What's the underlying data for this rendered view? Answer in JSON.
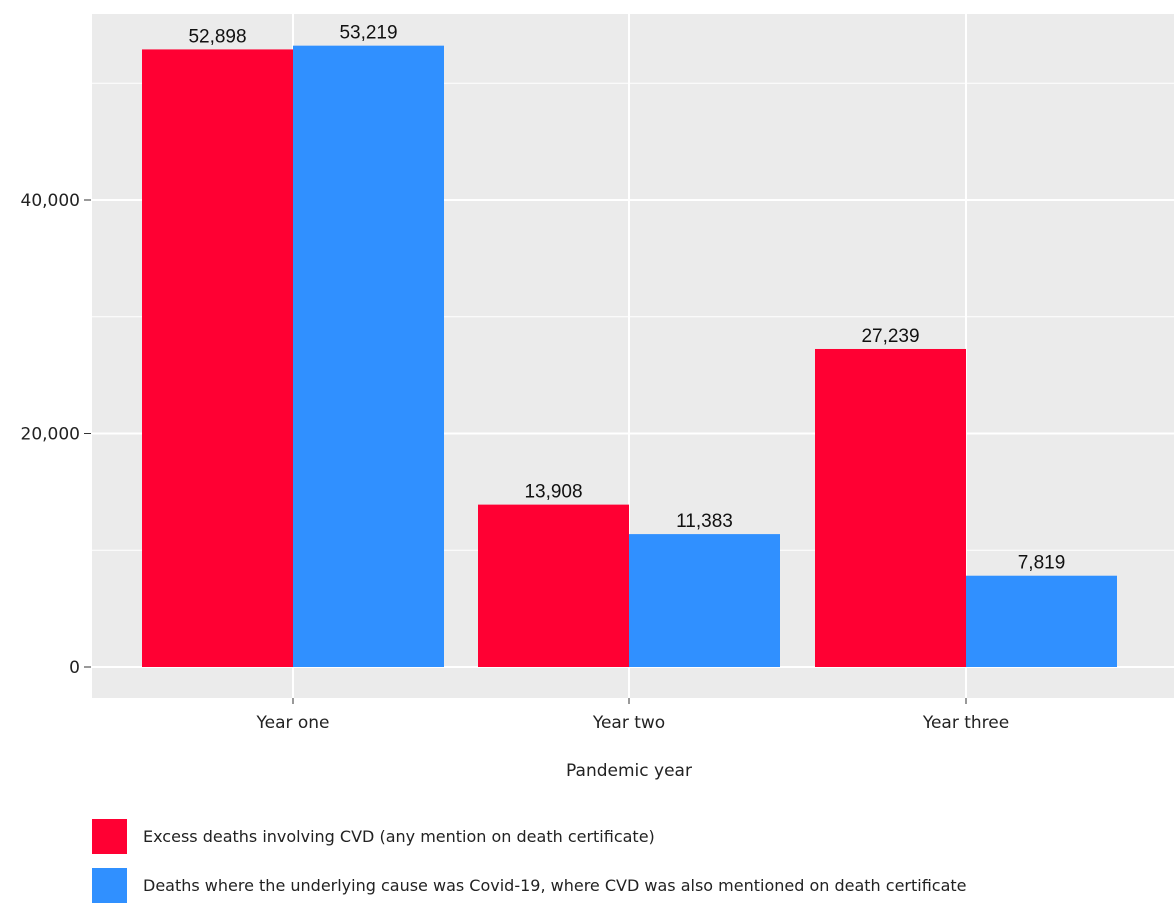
{
  "chart_data": {
    "type": "bar",
    "title": "",
    "xlabel": "Pandemic year",
    "ylabel": "",
    "categories": [
      "Year one",
      "Year two",
      "Year three"
    ],
    "series": [
      {
        "name": "Excess deaths involving CVD (any mention on death certificate)",
        "values": [
          52898,
          13908,
          27239
        ],
        "value_labels": [
          "52,898",
          "13,908",
          "27,239"
        ],
        "color": "#ff0033"
      },
      {
        "name": "Deaths where the underlying cause was Covid-19, where CVD was also mentioned on death certificate",
        "values": [
          53219,
          11383,
          7819
        ],
        "value_labels": [
          "53,219",
          "11,383",
          "7,819"
        ],
        "color": "#3090ff"
      }
    ],
    "y_ticks": [
      0,
      20000,
      40000
    ],
    "y_tick_labels": [
      "0",
      "20,000",
      "40,000"
    ],
    "ylim": [
      -2700,
      55800
    ],
    "grid": true,
    "legend_position": "bottom",
    "background_color": "#ebebeb",
    "grid_color": "#ffffff"
  }
}
